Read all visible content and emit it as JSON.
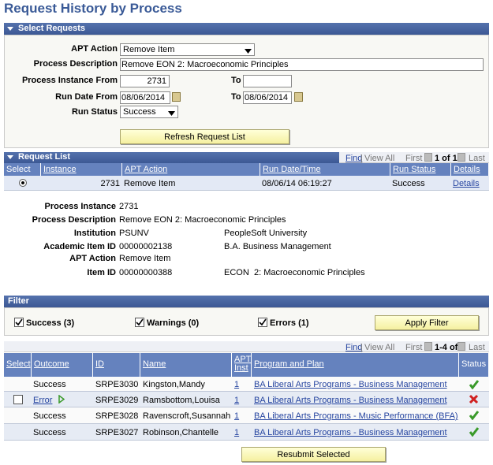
{
  "page_title": "Request History by Process",
  "select_requests": {
    "header": "Select Requests",
    "apt_action": {
      "label": "APT Action",
      "value": "Remove Item"
    },
    "process_description": {
      "label": "Process Description",
      "value": "Remove EON 2: Macroeconomic Principles"
    },
    "process_instance_from": {
      "label": "Process Instance From",
      "value": "2731"
    },
    "process_instance_to": {
      "label": "To"
    },
    "run_date_from": {
      "label": "Run Date From",
      "value": "08/06/2014"
    },
    "run_date_to": {
      "label": "To",
      "value": "08/06/2014"
    },
    "run_status": {
      "label": "Run Status",
      "value": "Success"
    },
    "refresh_button": "Refresh Request List"
  },
  "request_list": {
    "header": "Request List",
    "nav": {
      "find": "Find",
      "separator": "|",
      "view_all": "View All",
      "first": "First",
      "range": "1 of 1",
      "last": "Last"
    },
    "columns": [
      "Select",
      "Instance",
      "APT Action",
      "Run Date/Time",
      "Run Status",
      "Details"
    ],
    "rows": [
      [
        "2731",
        "Remove Item",
        "08/06/14 06:19:27",
        "Success",
        "Details"
      ]
    ]
  },
  "details": {
    "process_instance": {
      "label": "Process Instance",
      "value": "2731"
    },
    "process_description": {
      "label": "Process Description",
      "value": "Remove EON 2: Macroeconomic Principles"
    },
    "institution": {
      "label": "Institution",
      "value": "PSUNV",
      "description": "PeopleSoft University"
    },
    "academic_item_id": {
      "label": "Academic Item ID",
      "value": "00000002138",
      "description": "B.A. Business Management"
    },
    "apt_action": {
      "label": "APT Action",
      "value": "Remove Item"
    },
    "item_id": {
      "label": "Item ID",
      "value": "00000000388",
      "subject": "ECON",
      "description": "2: Macroeconomic Principles"
    }
  },
  "filter": {
    "header": "Filter",
    "options": [
      "Success (3)",
      "Warnings (0)",
      "Errors (1)"
    ],
    "apply_button": "Apply Filter"
  },
  "results": {
    "nav": {
      "find": "Find",
      "separator": "|",
      "view_all": "View All",
      "first": "First",
      "range": "1-4 of 4",
      "last": "Last"
    },
    "columns": [
      "Select",
      "Outcome",
      "ID",
      "Name",
      "APT Inst",
      "Program and Plan",
      "Status"
    ],
    "rows": [
      {
        "outcome": "Success",
        "id": "SRPE3030",
        "name": "Kingston,Mandy",
        "apt_inst": "1",
        "program": "BA Liberal Arts Programs - Business Management"
      },
      {
        "outcome": "Error",
        "id": "SRPE3029",
        "name": "Ramsbottom,Louisa",
        "apt_inst": "1",
        "program": "BA Liberal Arts Programs - Business Management"
      },
      {
        "outcome": "Success",
        "id": "SRPE3028",
        "name": "Ravenscroft,Susannah",
        "apt_inst": "1",
        "program": "BA Liberal Arts Programs - Music Performance (BFA)"
      },
      {
        "outcome": "Success",
        "id": "SRPE3027",
        "name": "Robinson,Chantelle",
        "apt_inst": "1",
        "program": "BA Liberal Arts Programs - Business Management"
      }
    ]
  },
  "resubmit_button": "Resubmit Selected"
}
